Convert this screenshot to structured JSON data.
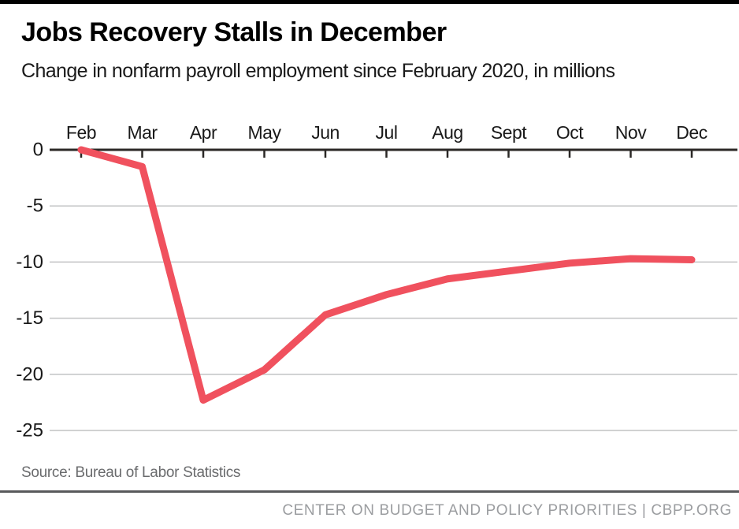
{
  "header": {
    "title": "Jobs Recovery Stalls in December",
    "subtitle": "Change in nonfarm payroll employment since February 2020, in millions"
  },
  "chart_data": {
    "type": "line",
    "categories": [
      "Feb",
      "Mar",
      "Apr",
      "May",
      "Jun",
      "Jul",
      "Aug",
      "Sept",
      "Oct",
      "Nov",
      "Dec"
    ],
    "series": [
      {
        "name": "Change in nonfarm payroll employment since February 2020 (millions)",
        "values": [
          0,
          -1.5,
          -22.3,
          -19.6,
          -14.7,
          -12.9,
          -11.5,
          -10.8,
          -10.1,
          -9.7,
          -9.8
        ]
      }
    ],
    "title": "Jobs Recovery Stalls in December",
    "xlabel": "",
    "ylabel": "",
    "yticks": [
      0,
      -5,
      -10,
      -15,
      -20,
      -25
    ],
    "ylim": [
      -25,
      0
    ],
    "grid": "horizontal-light-gray, zero-baseline-dark, x-axis-on-top",
    "legend_position": "none"
  },
  "footer": {
    "source": "Source: Bureau of Labor Statistics",
    "brand": "CENTER ON BUDGET AND POLICY PRIORITIES | CBPP.ORG"
  },
  "colors": {
    "line": "#f0515e",
    "axis": "#2b2826",
    "gridline": "#c2c3c4",
    "tick_label": "#191919",
    "title": "#000000",
    "subtitle": "#1a1a1a",
    "source_text": "#6a6b6d",
    "divider": "#58595b",
    "brand_text": "#9b9da0",
    "top_bar": "#000000"
  }
}
